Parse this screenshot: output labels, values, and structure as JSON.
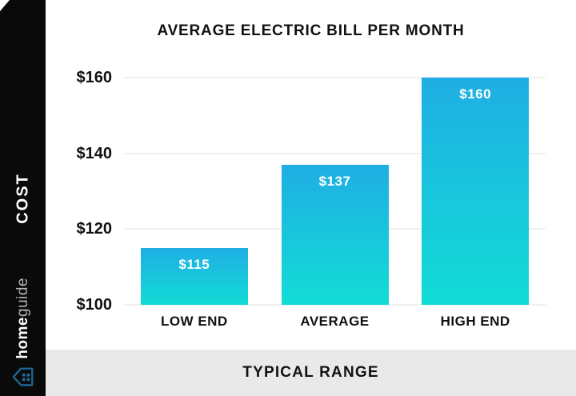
{
  "sidebar": {
    "cost_label": "COST",
    "brand_part1": "home",
    "brand_part2": "guide",
    "bg_color": "#0A0A0A",
    "cost_color": "#FFFFFF",
    "brand_part1_color": "#FFFFFF",
    "brand_part2_color": "#B5B5B5",
    "logo_color": "#1E6B96"
  },
  "footer": {
    "label": "TYPICAL RANGE",
    "bg_color": "#E9E9E9",
    "text_color": "#111111"
  },
  "chart_data": {
    "type": "bar",
    "title": "AVERAGE ELECTRIC BILL PER MONTH",
    "categories": [
      "LOW END",
      "AVERAGE",
      "HIGH END"
    ],
    "values": [
      115,
      137,
      160
    ],
    "value_labels": [
      "$115",
      "$137",
      "$160"
    ],
    "xlabel": "",
    "ylabel": "",
    "ylim": [
      100,
      160
    ],
    "y_tick_values": [
      160,
      140,
      120,
      100
    ],
    "y_tick_labels": [
      "$160",
      "$140",
      "$120",
      "$100"
    ],
    "grid": true,
    "legend": "none",
    "gridline_color": "#F1F1F1",
    "bar_gradient_top": "#1FAEE3",
    "bar_gradient_bottom": "#12DCD6",
    "value_label_color": "#FFFFFF",
    "axis_text_color": "#111111",
    "title_color": "#111111"
  }
}
